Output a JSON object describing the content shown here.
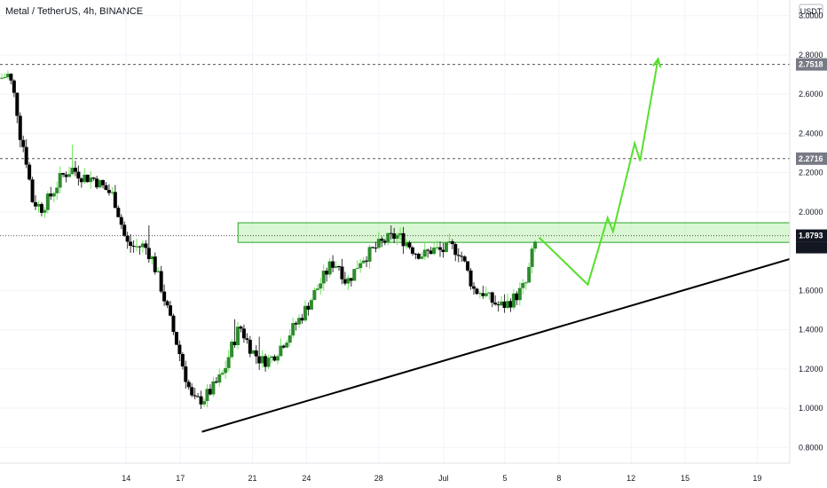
{
  "header": {
    "title": "Metal / TetherUS, 4h, BINANCE",
    "currency_button": "USDT"
  },
  "colors": {
    "up": "#2e8b2e",
    "down": "#000000",
    "wick": "#6ee65a",
    "arrow": "#55e02a",
    "zone_fill": "#b9f0ad",
    "zone_stroke": "#2aa52a",
    "trend": "#000000"
  },
  "chart_data": {
    "type": "candlestick",
    "ylim": [
      0.72,
      3.08
    ],
    "y_ticks": [
      3.0,
      2.8,
      2.6,
      2.4,
      2.2,
      2.0,
      1.6,
      1.4,
      1.2,
      1.0,
      0.8
    ],
    "y_tick_labels": [
      "3.0000",
      "2.8000",
      "2.6000",
      "2.4000",
      "2.2000",
      "2.0000",
      "1.6000",
      "1.4000",
      "1.2000",
      "1.0000",
      "0.8000"
    ],
    "x_ticks": [
      {
        "label": "14",
        "t": 13.0
      },
      {
        "label": "17",
        "t": 16.0
      },
      {
        "label": "21",
        "t": 20.0
      },
      {
        "label": "24",
        "t": 23.0
      },
      {
        "label": "28",
        "t": 27.0
      },
      {
        "label": "Jul",
        "t": 30.6
      },
      {
        "label": "5",
        "t": 34.0
      },
      {
        "label": "8",
        "t": 37.0
      },
      {
        "label": "12",
        "t": 41.0
      },
      {
        "label": "15",
        "t": 44.0
      },
      {
        "label": "19",
        "t": 48.0
      }
    ],
    "t_range": [
      6.0,
      49.8
    ],
    "price_path": [
      [
        6.0,
        2.68
      ],
      [
        6.5,
        2.7
      ],
      [
        6.9,
        2.55
      ],
      [
        7.1,
        2.4
      ],
      [
        7.4,
        2.3
      ],
      [
        7.8,
        2.06
      ],
      [
        8.3,
        2.02
      ],
      [
        8.8,
        2.08
      ],
      [
        9.4,
        2.18
      ],
      [
        10.0,
        2.22
      ],
      [
        10.6,
        2.18
      ],
      [
        11.2,
        2.17
      ],
      [
        11.8,
        2.12
      ],
      [
        12.3,
        2.08
      ],
      [
        12.7,
        1.95
      ],
      [
        13.0,
        1.84
      ],
      [
        13.5,
        1.82
      ],
      [
        14.0,
        1.83
      ],
      [
        14.4,
        1.77
      ],
      [
        14.9,
        1.63
      ],
      [
        15.4,
        1.46
      ],
      [
        15.9,
        1.3
      ],
      [
        16.3,
        1.16
      ],
      [
        16.7,
        1.03
      ],
      [
        17.3,
        1.05
      ],
      [
        17.8,
        1.1
      ],
      [
        18.4,
        1.18
      ],
      [
        18.8,
        1.3
      ],
      [
        19.3,
        1.42
      ],
      [
        19.6,
        1.36
      ],
      [
        20.0,
        1.29
      ],
      [
        20.5,
        1.24
      ],
      [
        21.0,
        1.25
      ],
      [
        21.6,
        1.32
      ],
      [
        22.2,
        1.4
      ],
      [
        22.8,
        1.48
      ],
      [
        23.4,
        1.58
      ],
      [
        23.9,
        1.66
      ],
      [
        24.4,
        1.74
      ],
      [
        24.8,
        1.73
      ],
      [
        25.2,
        1.64
      ],
      [
        25.6,
        1.69
      ],
      [
        26.0,
        1.76
      ],
      [
        26.5,
        1.79
      ],
      [
        27.0,
        1.83
      ],
      [
        27.5,
        1.86
      ],
      [
        28.0,
        1.88
      ],
      [
        28.5,
        1.85
      ],
      [
        29.0,
        1.8
      ],
      [
        29.5,
        1.78
      ],
      [
        30.0,
        1.81
      ],
      [
        30.5,
        1.8
      ],
      [
        31.0,
        1.82
      ],
      [
        31.5,
        1.8
      ],
      [
        31.9,
        1.7
      ],
      [
        32.3,
        1.6
      ],
      [
        32.8,
        1.59
      ],
      [
        33.2,
        1.55
      ],
      [
        33.7,
        1.52
      ],
      [
        34.1,
        1.53
      ],
      [
        34.5,
        1.56
      ],
      [
        34.9,
        1.6
      ],
      [
        35.2,
        1.64
      ],
      [
        35.5,
        1.78
      ],
      [
        35.8,
        1.88
      ]
    ],
    "resistance_zone": [
      1.845,
      1.945
    ],
    "trendline": [
      [
        17.2,
        0.88
      ],
      [
        49.8,
        1.76
      ]
    ],
    "projection_arrow": [
      [
        35.9,
        1.87
      ],
      [
        38.6,
        1.63
      ],
      [
        39.7,
        1.97
      ],
      [
        40.0,
        1.9
      ],
      [
        41.2,
        2.35
      ],
      [
        41.5,
        2.26
      ],
      [
        42.5,
        2.78
      ]
    ],
    "levels": [
      {
        "value": 2.7518,
        "label": "2.7518",
        "style": "dashed"
      },
      {
        "value": 2.2716,
        "label": "2.2716",
        "style": "dashed"
      },
      {
        "value": 1.8793,
        "label": "1.8793",
        "style": "dotted",
        "current": true,
        "countdown": "03:57:41"
      }
    ]
  }
}
